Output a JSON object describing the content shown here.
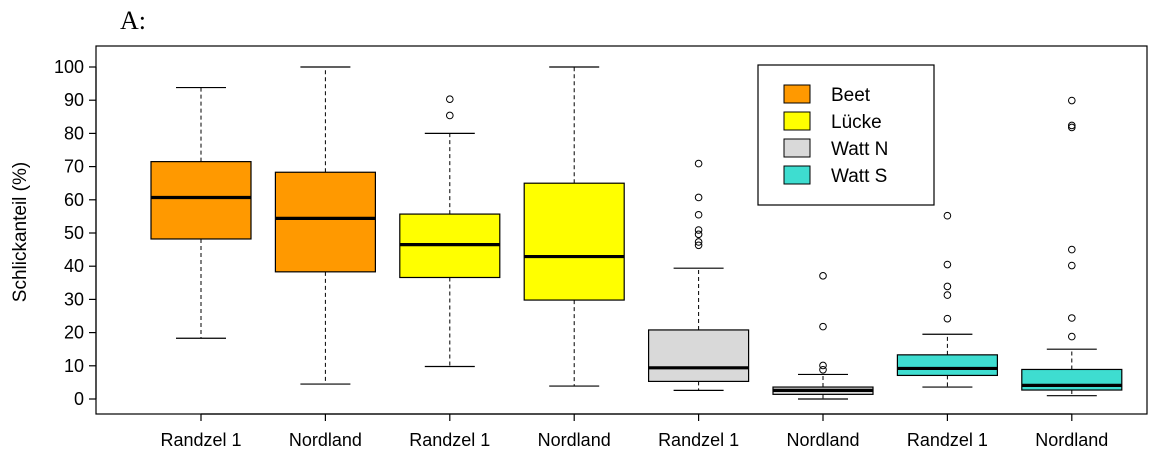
{
  "panel_label": "A:",
  "chart_data": {
    "type": "boxplot",
    "ylabel": "Schlickanteil (%)",
    "ylim": [
      0,
      100
    ],
    "yticks": [
      0,
      10,
      20,
      30,
      40,
      50,
      60,
      70,
      80,
      90,
      100
    ],
    "grid": false,
    "legend_position": "top-right",
    "legend": [
      {
        "label": "Beet",
        "color": "#FF9900"
      },
      {
        "label": "Lücke",
        "color": "#FFFF00"
      },
      {
        "label": "Watt N",
        "color": "#D9D9D9"
      },
      {
        "label": "Watt S",
        "color": "#3EDDD0"
      }
    ],
    "boxes": [
      {
        "category": "Randzel 1",
        "group": "Beet",
        "color": "#FF9900",
        "whisker_low": 18.3,
        "q1": 48.2,
        "median": 60.7,
        "q3": 71.5,
        "whisker_high": 93.8,
        "outliers": []
      },
      {
        "category": "Nordland",
        "group": "Beet",
        "color": "#FF9900",
        "whisker_low": 4.5,
        "q1": 38.3,
        "median": 54.4,
        "q3": 68.3,
        "whisker_high": 100,
        "outliers": []
      },
      {
        "category": "Randzel 1",
        "group": "Lücke",
        "color": "#FFFF00",
        "whisker_low": 9.8,
        "q1": 36.6,
        "median": 46.5,
        "q3": 55.7,
        "whisker_high": 80.0,
        "outliers": [
          85.4,
          90.3
        ]
      },
      {
        "category": "Nordland",
        "group": "Lücke",
        "color": "#FFFF00",
        "whisker_low": 3.9,
        "q1": 29.8,
        "median": 42.9,
        "q3": 65.0,
        "whisker_high": 100,
        "outliers": []
      },
      {
        "category": "Randzel 1",
        "group": "Watt N",
        "color": "#D9D9D9",
        "whisker_low": 2.6,
        "q1": 5.3,
        "median": 9.4,
        "q3": 20.8,
        "whisker_high": 39.4,
        "outliers": [
          46.3,
          47.3,
          49.6,
          50.9,
          55.5,
          60.7,
          70.9
        ]
      },
      {
        "category": "Nordland",
        "group": "Watt N",
        "color": "#D9D9D9",
        "whisker_low": 0.0,
        "q1": 1.4,
        "median": 2.6,
        "q3": 3.6,
        "whisker_high": 7.4,
        "outliers": [
          8.8,
          10.1,
          21.8,
          37.1
        ]
      },
      {
        "category": "Randzel 1",
        "group": "Watt S",
        "color": "#3EDDD0",
        "whisker_low": 3.6,
        "q1": 7.1,
        "median": 9.2,
        "q3": 13.3,
        "whisker_high": 19.5,
        "outliers": [
          24.2,
          31.3,
          33.9,
          40.5,
          55.2
        ]
      },
      {
        "category": "Nordland",
        "group": "Watt S",
        "color": "#3EDDD0",
        "whisker_low": 1.0,
        "q1": 2.7,
        "median": 4.1,
        "q3": 8.9,
        "whisker_high": 15.0,
        "outliers": [
          18.8,
          24.4,
          40.2,
          45.0,
          81.8,
          82.4,
          89.9
        ]
      }
    ]
  }
}
